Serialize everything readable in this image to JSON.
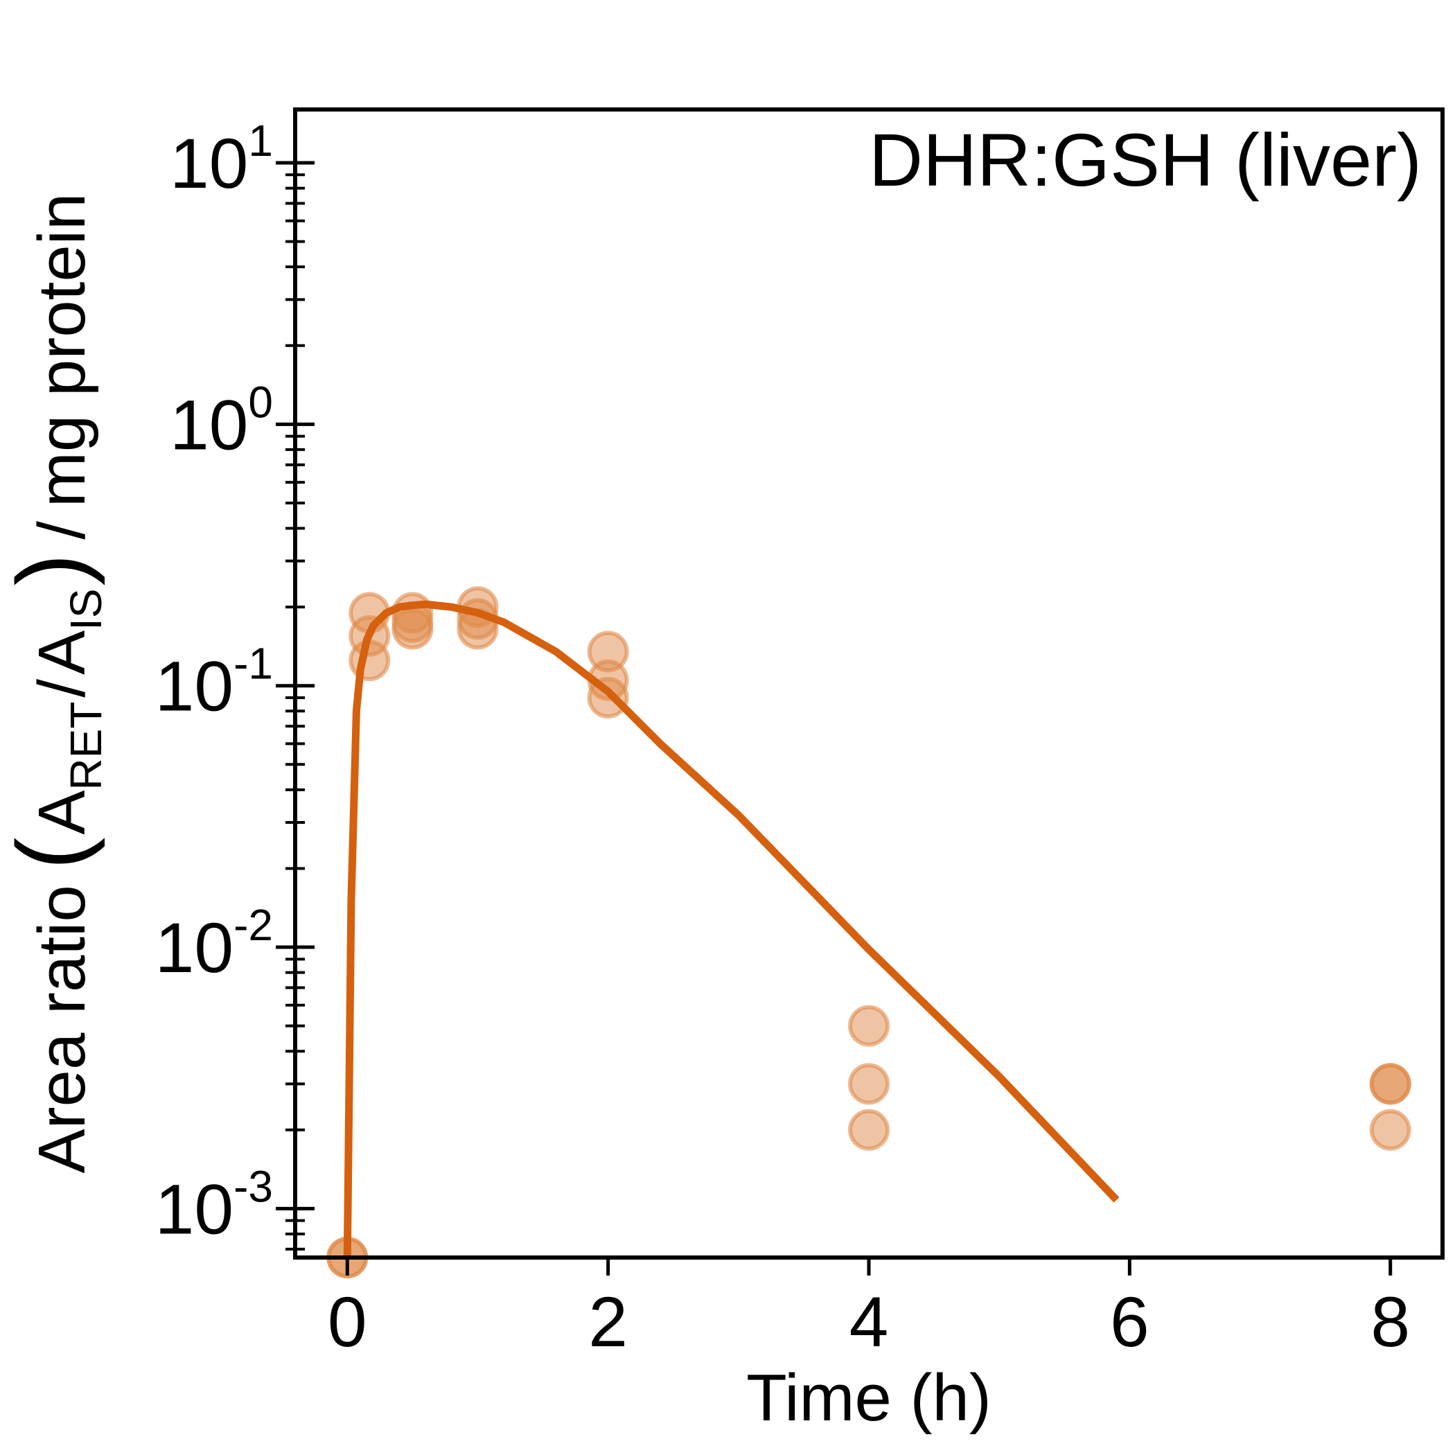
{
  "chart_data": {
    "type": "scatter",
    "title": "",
    "annotation": "DHR:GSH (liver)",
    "xlabel": "Time (h)",
    "ylabel": {
      "prefix": "Area ratio",
      "numerator_base": "A",
      "numerator_sub": "RET",
      "denominator_base": "A",
      "denominator_sub": "IS",
      "suffix": "mg protein"
    },
    "xscale": "linear",
    "yscale": "log",
    "xlim": [
      -0.4,
      8.4
    ],
    "ylim": [
      0.00065,
      16
    ],
    "x_ticks": [
      0,
      2,
      4,
      6,
      8
    ],
    "x_tick_labels": [
      "0",
      "2",
      "4",
      "6",
      "8"
    ],
    "y_ticks": [
      0.001,
      0.01,
      0.1,
      1,
      10
    ],
    "y_tick_labels": [
      {
        "base": "10",
        "exp": "-3"
      },
      {
        "base": "10",
        "exp": "-2"
      },
      {
        "base": "10",
        "exp": "-1"
      },
      {
        "base": "10",
        "exp": "0"
      },
      {
        "base": "10",
        "exp": "1"
      }
    ],
    "grid": false,
    "colors": {
      "line": "#D5600E",
      "marker_fill": "#E08A4A",
      "marker_edge": "#E08A4A"
    },
    "series": [
      {
        "kind": "points",
        "points": [
          {
            "x": 0,
            "y": 0.00065
          },
          {
            "x": 0,
            "y": 0.00065
          },
          {
            "x": 0.17,
            "y": 0.19
          },
          {
            "x": 0.17,
            "y": 0.155
          },
          {
            "x": 0.17,
            "y": 0.125
          },
          {
            "x": 0.5,
            "y": 0.19
          },
          {
            "x": 0.5,
            "y": 0.175
          },
          {
            "x": 0.5,
            "y": 0.165
          },
          {
            "x": 1,
            "y": 0.2
          },
          {
            "x": 1,
            "y": 0.18
          },
          {
            "x": 1,
            "y": 0.165
          },
          {
            "x": 2,
            "y": 0.135
          },
          {
            "x": 2,
            "y": 0.105
          },
          {
            "x": 2,
            "y": 0.09
          },
          {
            "x": 4,
            "y": 0.005
          },
          {
            "x": 4,
            "y": 0.003
          },
          {
            "x": 4,
            "y": 0.002
          },
          {
            "x": 8,
            "y": 0.003
          },
          {
            "x": 8,
            "y": 0.003
          },
          {
            "x": 8,
            "y": 0.002
          }
        ]
      },
      {
        "kind": "line",
        "points": [
          {
            "x": 0,
            "y": 0.00065
          },
          {
            "x": 0.03,
            "y": 0.015
          },
          {
            "x": 0.07,
            "y": 0.08
          },
          {
            "x": 0.1,
            "y": 0.115
          },
          {
            "x": 0.15,
            "y": 0.15
          },
          {
            "x": 0.2,
            "y": 0.17
          },
          {
            "x": 0.3,
            "y": 0.19
          },
          {
            "x": 0.4,
            "y": 0.2
          },
          {
            "x": 0.5,
            "y": 0.203
          },
          {
            "x": 0.6,
            "y": 0.205
          },
          {
            "x": 0.8,
            "y": 0.2
          },
          {
            "x": 1.0,
            "y": 0.19
          },
          {
            "x": 1.2,
            "y": 0.175
          },
          {
            "x": 1.6,
            "y": 0.135
          },
          {
            "x": 2.0,
            "y": 0.095
          },
          {
            "x": 2.4,
            "y": 0.06
          },
          {
            "x": 3.0,
            "y": 0.032
          },
          {
            "x": 4.0,
            "y": 0.0098
          },
          {
            "x": 5.0,
            "y": 0.0032
          },
          {
            "x": 5.9,
            "y": 0.00108
          }
        ]
      }
    ]
  }
}
